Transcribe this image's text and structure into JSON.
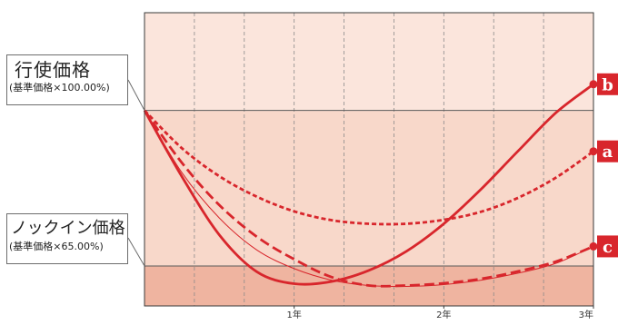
{
  "callouts": {
    "strike": {
      "title": "行使価格",
      "sub": "(基準価格×100.00%)"
    },
    "knockin": {
      "title": "ノックイン価格",
      "sub": "(基準価格×65.00%)"
    }
  },
  "colors": {
    "band_top": "#fbe5dc",
    "band_mid": "#f8d8ca",
    "band_bottom": "#efb4a0",
    "curve": "#d8262c",
    "badge_bg": "#d8262c",
    "level_line": "#5a5a5a",
    "grid_dash": "#8a8a8a"
  },
  "chart_data": {
    "type": "line",
    "xlabel": "",
    "ylabel": "",
    "x_ticks": [
      "1年",
      "2年",
      "3年"
    ],
    "xlim": [
      0,
      3
    ],
    "ylim": [
      56,
      122
    ],
    "y_axis_labels_shown": false,
    "grid": {
      "vertical_dashed": true,
      "horizontal": false
    },
    "reference_levels": [
      {
        "label": "行使価格",
        "value": 100
      },
      {
        "label": "ノックイン価格",
        "value": 65
      }
    ],
    "series": [
      {
        "name": "a",
        "style": "dotted",
        "x": [
          0,
          0.25,
          0.5,
          0.75,
          1.0,
          1.25,
          1.5,
          1.75,
          2.0,
          2.25,
          2.5,
          2.75,
          3.0
        ],
        "y": [
          100,
          91.5,
          85.2,
          80.6,
          77.3,
          75.3,
          74.5,
          74.5,
          75.4,
          77.2,
          80.4,
          84.9,
          90.8
        ]
      },
      {
        "name": "b",
        "style": "solid",
        "x": [
          0,
          0.25,
          0.5,
          0.75,
          1.0,
          1.25,
          1.5,
          1.75,
          2.0,
          2.25,
          2.5,
          2.75,
          3.0
        ],
        "y": [
          100,
          85.1,
          72.0,
          63.7,
          61.0,
          61.5,
          64.0,
          68.3,
          74.5,
          82.3,
          91.0,
          99.5,
          105.9
        ]
      },
      {
        "name": "c",
        "style": "dashed",
        "x": [
          0,
          0.25,
          0.5,
          0.75,
          1.0,
          1.25,
          1.5,
          1.75,
          2.0,
          2.25,
          2.5,
          2.75,
          3.0
        ],
        "y": [
          100,
          88.2,
          78.7,
          71.6,
          66.5,
          62.5,
          60.6,
          60.6,
          61.1,
          62.1,
          63.8,
          66.0,
          69.4
        ]
      }
    ],
    "thin_lines": [
      {
        "x": [
          0,
          0.25,
          0.5,
          0.75,
          1.0,
          1.25,
          1.5,
          1.75,
          2.0,
          2.25,
          2.5,
          2.75,
          3.0
        ],
        "y": [
          100,
          86.0,
          75.8,
          68.6,
          64.4,
          61.8,
          60.6,
          60.4,
          60.8,
          61.8,
          63.4,
          65.6,
          69.4
        ]
      }
    ]
  }
}
